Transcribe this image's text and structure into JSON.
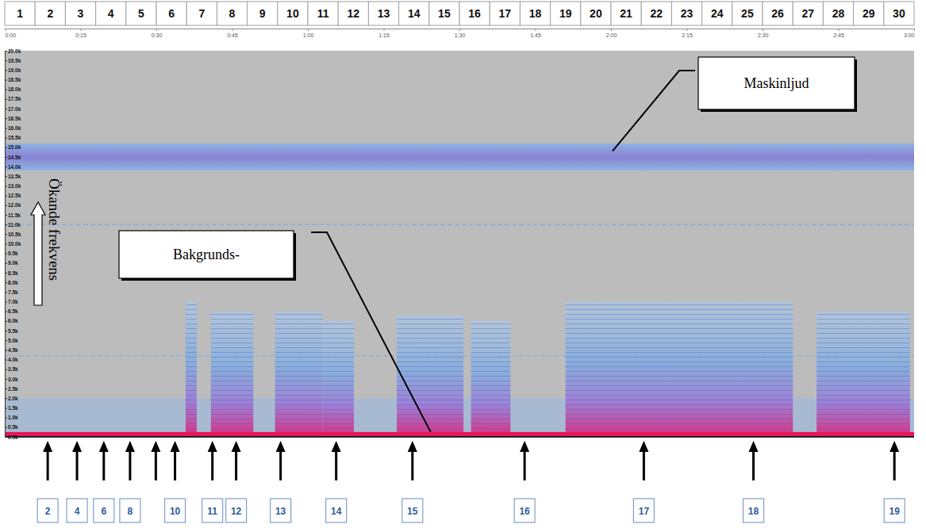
{
  "chart_data": {
    "type": "spectrogram",
    "y_label": "Ökande frekvens",
    "xlim": [
      0,
      180
    ],
    "xticks": [
      {
        "value": 0,
        "label": "0:00"
      },
      {
        "value": 15,
        "label": "0:15"
      },
      {
        "value": 30,
        "label": "0:30"
      },
      {
        "value": 45,
        "label": "0:45"
      },
      {
        "value": 60,
        "label": "1:00"
      },
      {
        "value": 75,
        "label": "1:15"
      },
      {
        "value": 90,
        "label": "1:30"
      },
      {
        "value": 105,
        "label": "1:45"
      },
      {
        "value": 120,
        "label": "2:00"
      },
      {
        "value": 135,
        "label": "2:15"
      },
      {
        "value": 150,
        "label": "2:30"
      },
      {
        "value": 165,
        "label": "2:45"
      },
      {
        "value": 180,
        "label": "3:00"
      }
    ],
    "ylim": [
      0,
      20000
    ],
    "yticks": [
      {
        "value": 0,
        "label": "0.0k"
      },
      {
        "value": 500,
        "label": "0.5k"
      },
      {
        "value": 1000,
        "label": "1.0k"
      },
      {
        "value": 1500,
        "label": "1.5k"
      },
      {
        "value": 2000,
        "label": "2.0k"
      },
      {
        "value": 2500,
        "label": "2.5k"
      },
      {
        "value": 3000,
        "label": "3.0k"
      },
      {
        "value": 3500,
        "label": "3.5k"
      },
      {
        "value": 4000,
        "label": "4.0k"
      },
      {
        "value": 4500,
        "label": "4.5k"
      },
      {
        "value": 5000,
        "label": "5.0k"
      },
      {
        "value": 5500,
        "label": "5.5k"
      },
      {
        "value": 6000,
        "label": "6.0k"
      },
      {
        "value": 6500,
        "label": "6.5k"
      },
      {
        "value": 7000,
        "label": "7.0k"
      },
      {
        "value": 7500,
        "label": "7.5k"
      },
      {
        "value": 8000,
        "label": "8.0k"
      },
      {
        "value": 8500,
        "label": "8.5k"
      },
      {
        "value": 9000,
        "label": "9.0k"
      },
      {
        "value": 9500,
        "label": "9.5k"
      },
      {
        "value": 10000,
        "label": "10.0k"
      },
      {
        "value": 10500,
        "label": "10.5k"
      },
      {
        "value": 11000,
        "label": "11.0k"
      },
      {
        "value": 11500,
        "label": "11.5k"
      },
      {
        "value": 12000,
        "label": "12.0k"
      },
      {
        "value": 12500,
        "label": "12.5k"
      },
      {
        "value": 13000,
        "label": "13.0k"
      },
      {
        "value": 13500,
        "label": "13.5k"
      },
      {
        "value": 14000,
        "label": "14.0k"
      },
      {
        "value": 14500,
        "label": "14.5k"
      },
      {
        "value": 15000,
        "label": "15.0k"
      },
      {
        "value": 15500,
        "label": "15.5k"
      },
      {
        "value": 16000,
        "label": "16.0k"
      },
      {
        "value": 16500,
        "label": "16.5k"
      },
      {
        "value": 17000,
        "label": "17.0k"
      },
      {
        "value": 17500,
        "label": "17.5k"
      },
      {
        "value": 18000,
        "label": "18.0k"
      },
      {
        "value": 18500,
        "label": "18.5k"
      },
      {
        "value": 19000,
        "label": "19.0k"
      },
      {
        "value": 19500,
        "label": "19.5k"
      },
      {
        "value": 20000,
        "label": "20.0k"
      }
    ],
    "segments": [
      1,
      2,
      3,
      4,
      5,
      6,
      7,
      8,
      9,
      10,
      11,
      12,
      13,
      14,
      15,
      16,
      17,
      18,
      19,
      20,
      21,
      22,
      23,
      24,
      25,
      26,
      27,
      28,
      29,
      30
    ],
    "floor_band": [
      0,
      2000
    ],
    "background_band": [
      0,
      250
    ],
    "noise_band": [
      13800,
      15200
    ],
    "tones": [
      4200,
      11000
    ],
    "events": [
      {
        "start": 35.8,
        "end": 38.0,
        "top": 7000
      },
      {
        "start": 40.8,
        "end": 49.2,
        "top": 6500
      },
      {
        "start": 53.5,
        "end": 62.9,
        "top": 6500
      },
      {
        "start": 62.9,
        "end": 69.1,
        "top": 6000
      },
      {
        "start": 77.6,
        "end": 90.8,
        "top": 6300
      },
      {
        "start": 92.3,
        "end": 100.1,
        "top": 6000
      },
      {
        "start": 111.0,
        "end": 156.0,
        "top": 7000
      },
      {
        "start": 160.7,
        "end": 179.2,
        "top": 6500
      }
    ],
    "markers": [
      {
        "x": 8.5,
        "label": 2
      },
      {
        "x": 14.3,
        "label": 4
      },
      {
        "x": 19.6,
        "label": 6
      },
      {
        "x": 24.8,
        "label": 8
      },
      {
        "x": 29.9,
        "label": null
      },
      {
        "x": 33.7,
        "label": 10
      },
      {
        "x": 41.1,
        "label": 11
      },
      {
        "x": 45.8,
        "label": 12
      },
      {
        "x": 54.6,
        "label": 13
      },
      {
        "x": 65.6,
        "label": 14
      },
      {
        "x": 80.7,
        "label": 15
      },
      {
        "x": 102.9,
        "label": 16
      },
      {
        "x": 126.5,
        "label": 17
      },
      {
        "x": 148.2,
        "label": 18
      },
      {
        "x": 176.1,
        "label": 19
      }
    ],
    "annotations": [
      {
        "text": "Maskinljud",
        "target": [
          120.3,
          14800
        ]
      },
      {
        "text": "Bakgrunds-",
        "target": [
          84.3,
          250
        ]
      }
    ]
  }
}
